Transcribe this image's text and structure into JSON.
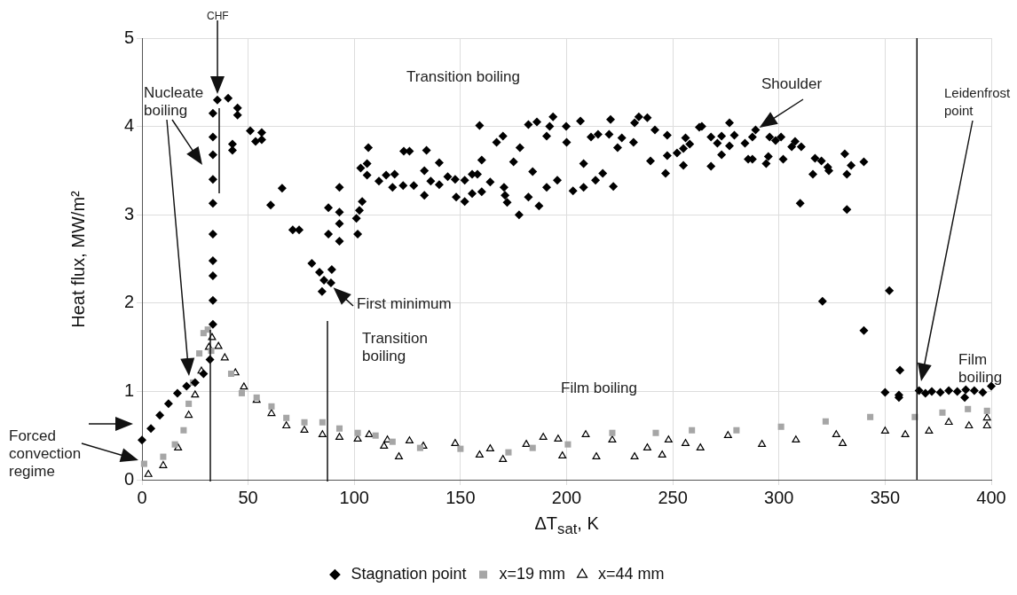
{
  "chart_data": {
    "type": "scatter",
    "xlabel": "ΔT$_{sat}$, K",
    "ylabel": "Heat flux, MW/m²",
    "xlim": [
      0,
      400
    ],
    "xticks": [
      0,
      50,
      100,
      150,
      200,
      250,
      300,
      350,
      400
    ],
    "ylim": [
      0,
      5
    ],
    "yticks": [
      0,
      1,
      2,
      3,
      4,
      5
    ],
    "grid": true,
    "legend": "bottom",
    "annotations": [
      "CHF",
      "Transition boiling",
      {
        "text": "Shoulder",
        "x": 289,
        "y": 3.96
      },
      "Nucleate boiling",
      "Forced convection regime",
      "Transition boiling",
      {
        "text": "First minimum",
        "x": 88.6,
        "y": 2.21
      },
      "Film boiling",
      "Leidenfrost point",
      "Film boiling"
    ],
    "ref_lines": [
      {
        "axis": "x",
        "value": 365
      }
    ],
    "series": [
      {
        "name": "Stagnation point",
        "color": "#000000",
        "marker": "diamond",
        "x": [
          0,
          4.2,
          8.4,
          12.5,
          16.7,
          21,
          25,
          29,
          32,
          33.4,
          33.4,
          33.4,
          33.4,
          33.4,
          33.4,
          33.4,
          33.4,
          33.4,
          33.4,
          35.5,
          40.6,
          45,
          45,
          42.6,
          42.6,
          51,
          53.5,
          56.4,
          56.4,
          60.6,
          66,
          71,
          74,
          80,
          83.6,
          85.7,
          89,
          84.8,
          89.4,
          87.8,
          87.8,
          93,
          93,
          93,
          93,
          101,
          102.4,
          103.7,
          101.6,
          103,
          106,
          106,
          106.6,
          111.6,
          115,
          118,
          119,
          123.3,
          126,
          123,
          128,
          133,
          133,
          134,
          136,
          140,
          140,
          144,
          147.5,
          148,
          152,
          152,
          155.5,
          155.5,
          158,
          159,
          160,
          160,
          164,
          167,
          170,
          170.5,
          171,
          172,
          175,
          177.6,
          178,
          182,
          182,
          184,
          186,
          187,
          190.6,
          190.6,
          192,
          193.6,
          195.6,
          199.8,
          200,
          203,
          206.5,
          208,
          208,
          211.5,
          213.6,
          214.8,
          217,
          220,
          220.7,
          222,
          224,
          226,
          231.5,
          232,
          234,
          238,
          239.5,
          241.6,
          246.6,
          247.4,
          247.4,
          252,
          255,
          255,
          256,
          258,
          262.5,
          263.7,
          268,
          268,
          271,
          273,
          273,
          276.7,
          276.7,
          279,
          284,
          285.5,
          287.5,
          287.5,
          289,
          294,
          295,
          295.6,
          298.4,
          301,
          302,
          306,
          307.6,
          310.5,
          310,
          316,
          317,
          320,
          323,
          323.5,
          331,
          332,
          334,
          332,
          340,
          320.5,
          340,
          352,
          357,
          350,
          356.5,
          356.5,
          366,
          369,
          372,
          376,
          380,
          384,
          388,
          387.5,
          392,
          396,
          400
        ],
        "values": [
          0.45,
          0.58,
          0.73,
          0.86,
          0.98,
          1.06,
          1.1,
          1.2,
          1.36,
          1.76,
          2.03,
          2.31,
          2.48,
          2.78,
          3.13,
          3.4,
          3.68,
          3.88,
          4.15,
          4.3,
          4.32,
          4.21,
          4.13,
          3.8,
          3.73,
          3.95,
          3.83,
          3.93,
          3.85,
          3.11,
          3.3,
          2.83,
          2.83,
          2.45,
          2.35,
          2.26,
          2.23,
          2.13,
          2.38,
          3.08,
          2.78,
          3.31,
          3.03,
          2.9,
          2.7,
          2.96,
          3.05,
          3.15,
          2.78,
          3.53,
          3.58,
          3.45,
          3.76,
          3.38,
          3.45,
          3.31,
          3.46,
          3.72,
          3.72,
          3.33,
          3.33,
          3.5,
          3.22,
          3.73,
          3.38,
          3.59,
          3.34,
          3.43,
          3.4,
          3.2,
          3.39,
          3.15,
          3.46,
          3.24,
          3.46,
          4.01,
          3.62,
          3.26,
          3.37,
          3.82,
          3.89,
          3.31,
          3.22,
          3.14,
          3.6,
          3,
          3.76,
          4.02,
          3.2,
          3.49,
          4.05,
          3.1,
          3.89,
          3.31,
          4,
          4.11,
          3.39,
          4,
          3.82,
          3.27,
          4.06,
          3.58,
          3.31,
          3.88,
          3.39,
          3.91,
          3.47,
          3.91,
          4.08,
          3.32,
          3.76,
          3.87,
          3.82,
          4.04,
          4.11,
          4.1,
          3.61,
          3.96,
          3.47,
          3.67,
          3.9,
          3.7,
          3.75,
          3.56,
          3.87,
          3.8,
          3.99,
          4,
          3.88,
          3.55,
          3.81,
          3.68,
          3.89,
          4.04,
          3.78,
          3.9,
          3.81,
          3.63,
          3.88,
          3.63,
          3.96,
          3.58,
          3.66,
          3.88,
          3.84,
          3.88,
          3.63,
          3.77,
          3.83,
          3.77,
          3.13,
          3.46,
          3.64,
          3.61,
          3.54,
          3.5,
          3.69,
          3.46,
          3.56,
          3.06,
          3.6,
          2.02,
          1.69,
          2.14,
          1.24,
          0.99,
          0.96,
          0.93,
          1.01,
          0.98,
          1,
          0.99,
          1.01,
          1,
          1.02,
          0.93,
          1.01,
          0.99,
          1.06
        ]
      },
      {
        "name": "x=19 mm",
        "color": "#a6a6a6",
        "marker": "square",
        "x": [
          1,
          10,
          15.5,
          19.6,
          22,
          24,
          27,
          29,
          31,
          32.6,
          42,
          47,
          54,
          61,
          68,
          76.5,
          85,
          93,
          101.6,
          110,
          118,
          131,
          150,
          172.6,
          184,
          200.6,
          221.5,
          242,
          259,
          280,
          301,
          322,
          343,
          364,
          377,
          389,
          398
        ],
        "values": [
          0.18,
          0.26,
          0.4,
          0.56,
          0.86,
          1.1,
          1.43,
          1.66,
          1.7,
          1.46,
          1.2,
          0.98,
          0.93,
          0.83,
          0.7,
          0.65,
          0.65,
          0.58,
          0.53,
          0.5,
          0.43,
          0.36,
          0.35,
          0.31,
          0.36,
          0.4,
          0.53,
          0.53,
          0.56,
          0.56,
          0.6,
          0.66,
          0.71,
          0.71,
          0.76,
          0.8,
          0.78
        ]
      },
      {
        "name": "x=44 mm",
        "color": "#000000",
        "marker": "triangle",
        "x": [
          3,
          10,
          17,
          22,
          25,
          28,
          31.5,
          33,
          36,
          39,
          44,
          48,
          54,
          61,
          68,
          76.5,
          85,
          93,
          101.6,
          107,
          114,
          115.6,
          121,
          126,
          132.5,
          147.5,
          159,
          164,
          170,
          181,
          189,
          196,
          198,
          209,
          214,
          221.5,
          232,
          238,
          245,
          248,
          256,
          263,
          276,
          292,
          308,
          327,
          330,
          350,
          359.5,
          370.7,
          380,
          389.5,
          398,
          398
        ],
        "values": [
          0.06,
          0.16,
          0.36,
          0.73,
          0.96,
          1.23,
          1.5,
          1.61,
          1.51,
          1.38,
          1.21,
          1.05,
          0.9,
          0.75,
          0.61,
          0.56,
          0.51,
          0.48,
          0.46,
          0.51,
          0.38,
          0.45,
          0.26,
          0.44,
          0.38,
          0.41,
          0.28,
          0.35,
          0.23,
          0.4,
          0.48,
          0.46,
          0.27,
          0.51,
          0.26,
          0.45,
          0.26,
          0.36,
          0.28,
          0.45,
          0.41,
          0.36,
          0.5,
          0.4,
          0.45,
          0.51,
          0.41,
          0.55,
          0.51,
          0.55,
          0.65,
          0.61,
          0.7,
          0.61
        ]
      }
    ]
  }
}
